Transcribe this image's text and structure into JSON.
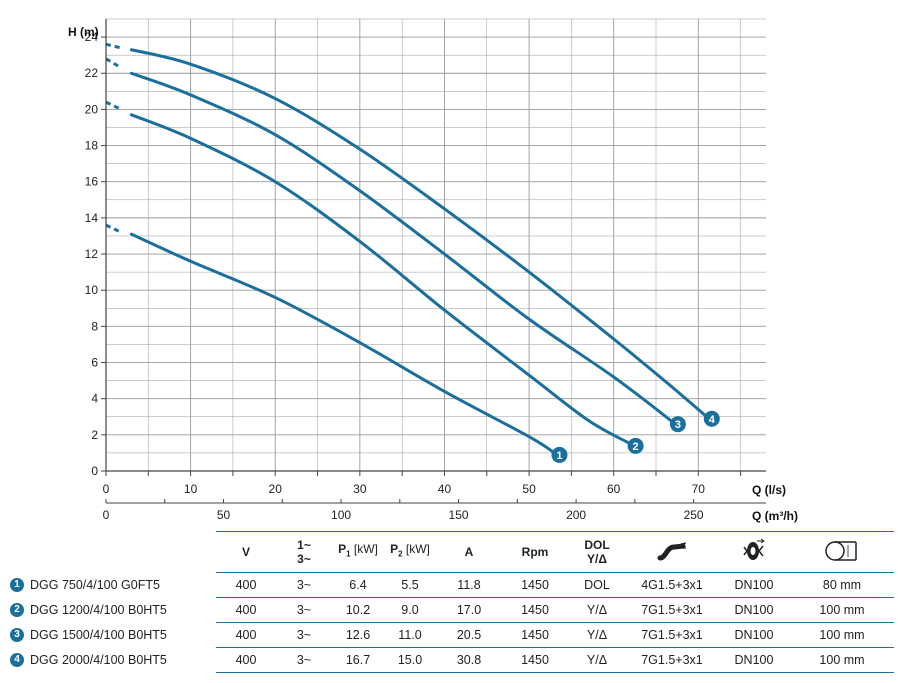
{
  "chart_data": {
    "type": "line",
    "ylabel": "H (m)",
    "xlabel": "Q (l/s)",
    "x2label": "Q (m³/h)",
    "xlim": [
      0,
      78
    ],
    "ylim": [
      0,
      25
    ],
    "x_ticks": [
      0,
      10,
      20,
      30,
      40,
      50,
      60,
      70
    ],
    "x2_ticks": [
      0,
      50,
      100,
      150,
      200,
      250
    ],
    "y_ticks": [
      0,
      2,
      4,
      6,
      8,
      10,
      12,
      14,
      16,
      18,
      20,
      22,
      24
    ],
    "grid": true,
    "series": [
      {
        "name": "1",
        "dashed": [
          [
            0,
            13.6
          ],
          [
            1.8,
            13.2
          ]
        ],
        "points": [
          [
            3,
            13.1
          ],
          [
            10,
            11.6
          ],
          [
            20,
            9.6
          ],
          [
            30,
            7.1
          ],
          [
            40,
            4.4
          ],
          [
            50,
            1.9
          ],
          [
            53,
            1.0
          ]
        ]
      },
      {
        "name": "2",
        "dashed": [
          [
            0,
            20.4
          ],
          [
            1.8,
            20.0
          ]
        ],
        "points": [
          [
            3,
            19.7
          ],
          [
            10,
            18.4
          ],
          [
            20,
            16.0
          ],
          [
            30,
            12.7
          ],
          [
            40,
            8.9
          ],
          [
            50,
            5.3
          ],
          [
            57,
            2.8
          ],
          [
            62,
            1.5
          ]
        ]
      },
      {
        "name": "3",
        "dashed": [
          [
            0,
            22.8
          ],
          [
            1.8,
            22.3
          ]
        ],
        "points": [
          [
            3,
            22.0
          ],
          [
            10,
            20.8
          ],
          [
            20,
            18.6
          ],
          [
            30,
            15.5
          ],
          [
            40,
            12.0
          ],
          [
            50,
            8.4
          ],
          [
            60,
            5.2
          ],
          [
            67,
            2.7
          ]
        ]
      },
      {
        "name": "4",
        "dashed": [
          [
            0,
            23.6
          ],
          [
            1.8,
            23.4
          ]
        ],
        "points": [
          [
            3,
            23.3
          ],
          [
            10,
            22.5
          ],
          [
            20,
            20.6
          ],
          [
            30,
            17.8
          ],
          [
            40,
            14.5
          ],
          [
            50,
            11.0
          ],
          [
            60,
            7.3
          ],
          [
            66,
            5.0
          ],
          [
            71,
            3.0
          ]
        ]
      }
    ]
  },
  "colors": {
    "curve": "#1a6f9c",
    "grid": "#9a9a9a",
    "axis": "#444444"
  },
  "table": {
    "headers": {
      "v": "V",
      "phase_top": "1~",
      "phase_bottom": "3~",
      "p1": "P",
      "p1_sub": "1",
      "p1_unit": " [kW]",
      "p2": "P",
      "p2_sub": "2",
      "p2_unit": " [kW]",
      "a": "A",
      "rpm": "Rpm",
      "start_top": "DOL",
      "start_bottom": "Y/Δ",
      "cable_icon": "cable-icon",
      "impeller_icon": "impeller-icon",
      "outlet_icon": "outlet-pipe-icon"
    },
    "rows": [
      {
        "num": "1",
        "model": "DGG 750/4/100 G0FT5",
        "v": "400",
        "phase": "3~",
        "p1": "6.4",
        "p2": "5.5",
        "a": "11.8",
        "rpm": "1450",
        "start": "DOL",
        "cable": "4G1.5+3x1",
        "dn": "DN100",
        "outlet": "80 mm"
      },
      {
        "num": "2",
        "model": "DGG 1200/4/100 B0HT5",
        "v": "400",
        "phase": "3~",
        "p1": "10.2",
        "p2": "9.0",
        "a": "17.0",
        "rpm": "1450",
        "start": "Y/Δ",
        "cable": "7G1.5+3x1",
        "dn": "DN100",
        "outlet": "100 mm"
      },
      {
        "num": "3",
        "model": "DGG 1500/4/100 B0HT5",
        "v": "400",
        "phase": "3~",
        "p1": "12.6",
        "p2": "11.0",
        "a": "20.5",
        "rpm": "1450",
        "start": "Y/Δ",
        "cable": "7G1.5+3x1",
        "dn": "DN100",
        "outlet": "100 mm"
      },
      {
        "num": "4",
        "model": "DGG 2000/4/100 B0HT5",
        "v": "400",
        "phase": "3~",
        "p1": "16.7",
        "p2": "15.0",
        "a": "30.8",
        "rpm": "1450",
        "start": "Y/Δ",
        "cable": "7G1.5+3x1",
        "dn": "DN100",
        "outlet": "100 mm"
      }
    ]
  }
}
